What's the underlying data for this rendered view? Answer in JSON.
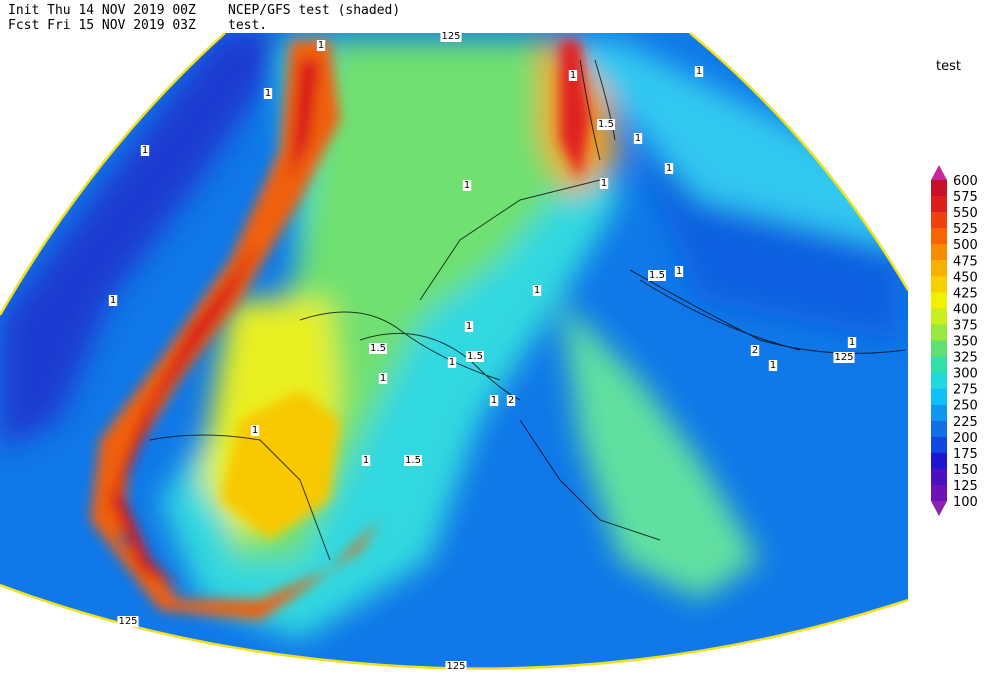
{
  "header": {
    "init": "Init  Thu 14 NOV 2019 00Z",
    "fcst": "Fcst Fri 15 NOV 2019 03Z",
    "model": "NCEP/GFS test (shaded)",
    "subtitle": "test."
  },
  "legend": {
    "title": "test",
    "labels": [
      "600",
      "575",
      "550",
      "525",
      "500",
      "475",
      "450",
      "425",
      "400",
      "375",
      "350",
      "325",
      "300",
      "275",
      "250",
      "225",
      "200",
      "175",
      "150",
      "125",
      "100"
    ],
    "colors": [
      "#c42a9c",
      "#c81028",
      "#e01c1c",
      "#f04010",
      "#f86400",
      "#f88c00",
      "#f8b000",
      "#f8d000",
      "#f0f000",
      "#c8f020",
      "#98e840",
      "#60e070",
      "#30e0a8",
      "#20d8e0",
      "#10c0f8",
      "#1098f0",
      "#1070e8",
      "#1048e0",
      "#1c14d0",
      "#4a10c0",
      "#6c10b8",
      "#8c20b0"
    ]
  },
  "contour_labels": [
    "1",
    "1",
    "1",
    "1",
    "1",
    "1.5",
    "1",
    "1",
    "1",
    "1.5",
    "1",
    "1",
    "1.5",
    "1",
    "1",
    "2",
    "1",
    "125",
    "1",
    "1.5",
    "1",
    "1",
    "1",
    "2",
    "125",
    "1",
    "1",
    "1.5",
    "1",
    "125",
    "125"
  ]
}
